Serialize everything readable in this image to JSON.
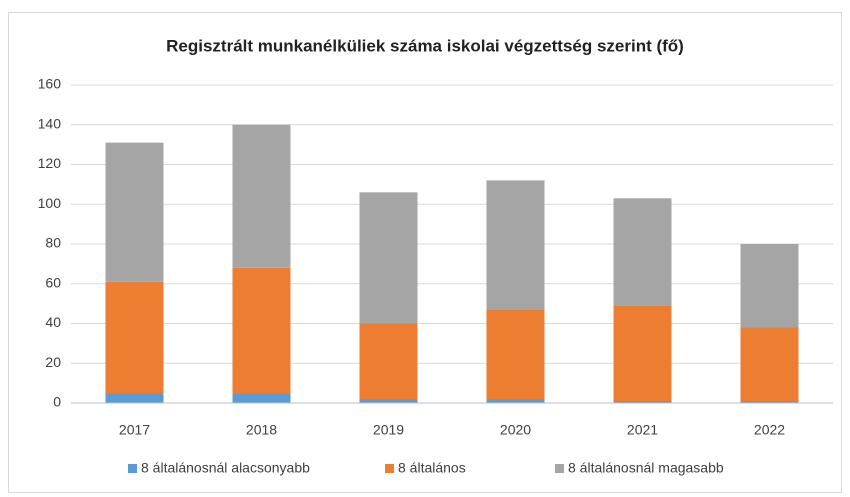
{
  "chart_data": {
    "type": "stacked_bar",
    "title": "Regisztrált munkanélküliek száma iskolai végzettség szerint (fő)",
    "categories": [
      "2017",
      "2018",
      "2019",
      "2020",
      "2021",
      "2022"
    ],
    "series": [
      {
        "name": "8 általánosnál alacsonyabb",
        "color": "#5b9bd5",
        "values": [
          5,
          5,
          2,
          2,
          1,
          1
        ]
      },
      {
        "name": "8 általános",
        "color": "#ed7d31",
        "values": [
          56,
          63,
          38,
          45,
          48,
          37
        ]
      },
      {
        "name": "8 általánosnál magasabb",
        "color": "#a5a5a5",
        "values": [
          70,
          72,
          66,
          65,
          54,
          42
        ]
      }
    ],
    "ylim": [
      0,
      160
    ],
    "yticks": [
      0,
      20,
      40,
      60,
      80,
      100,
      120,
      140,
      160
    ],
    "grid": true,
    "legend": "bottom"
  }
}
